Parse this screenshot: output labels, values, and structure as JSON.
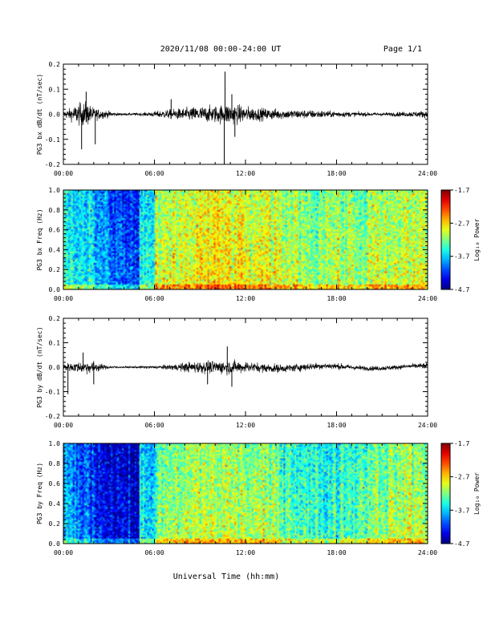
{
  "header": {
    "date_range": "2020/11/08  00:00-24:00 UT",
    "page": "Page 1/1"
  },
  "footer": {
    "xlabel": "Universal Time (hh:mm)"
  },
  "time_ticks": [
    "00:00",
    "06:00",
    "12:00",
    "18:00",
    "24:00"
  ],
  "colorbar": {
    "title": "Log₁₀ Power",
    "ticks": [
      "-1.7",
      "-2.7",
      "-3.7",
      "-4.7"
    ],
    "range": [
      -4.7,
      -1.7
    ]
  },
  "chart_data": [
    {
      "type": "line",
      "ylabel": "PG3 bx dB/dt (nT/sec)",
      "xlim": [
        0,
        24
      ],
      "ylim": [
        -0.2,
        0.2
      ],
      "yticks": [
        "0.2",
        "0.1",
        "0.0",
        "-0.1",
        "-0.2"
      ],
      "envelope": {
        "x": [
          0,
          0.5,
          1,
          1.5,
          2,
          2.5,
          3,
          3.5,
          4,
          4.5,
          5,
          5.5,
          6,
          6.5,
          7,
          7.5,
          8,
          8.5,
          9,
          9.5,
          10,
          10.5,
          11,
          11.5,
          12,
          12.5,
          13,
          13.5,
          14,
          14.5,
          15,
          15.5,
          16,
          16.5,
          17,
          17.5,
          18,
          18.5,
          19,
          19.5,
          20,
          20.5,
          21,
          21.5,
          22,
          22.5,
          23,
          23.5,
          24
        ],
        "amplitude": [
          0.02,
          0.04,
          0.07,
          0.08,
          0.04,
          0.03,
          0.02,
          0.01,
          0.008,
          0.008,
          0.01,
          0.012,
          0.018,
          0.025,
          0.03,
          0.035,
          0.04,
          0.045,
          0.05,
          0.05,
          0.055,
          0.06,
          0.07,
          0.06,
          0.05,
          0.045,
          0.04,
          0.035,
          0.035,
          0.03,
          0.03,
          0.028,
          0.028,
          0.025,
          0.025,
          0.02,
          0.02,
          0.018,
          0.015,
          0.015,
          0.012,
          0.012,
          0.012,
          0.012,
          0.015,
          0.015,
          0.018,
          0.02,
          0.025
        ]
      },
      "spikes": [
        {
          "x": 1.2,
          "y": -0.14
        },
        {
          "x": 1.5,
          "y": 0.09
        },
        {
          "x": 2.1,
          "y": -0.12
        },
        {
          "x": 7.1,
          "y": 0.06
        },
        {
          "x": 10.65,
          "y": 0.17
        },
        {
          "x": 10.6,
          "y": -0.2
        },
        {
          "x": 11.1,
          "y": 0.08
        },
        {
          "x": 11.3,
          "y": -0.09
        },
        {
          "x": 24,
          "y": 0.03
        }
      ]
    },
    {
      "type": "heatmap",
      "ylabel": "PG3 bx Freq (Hz)",
      "xlim": [
        0,
        24
      ],
      "ylim": [
        0.0,
        1.0
      ],
      "yticks": [
        "1.0",
        "0.8",
        "0.6",
        "0.4",
        "0.2",
        "0.0"
      ],
      "colorbar_label": "Log₁₀ Power",
      "mean_log_power_by_hour": [
        -3.5,
        -3.6,
        -3.8,
        -4.0,
        -4.1,
        -3.5,
        -3.0,
        -2.9,
        -2.8,
        -2.75,
        -2.75,
        -2.8,
        -2.85,
        -2.9,
        -2.95,
        -3.0,
        -3.1,
        -3.0,
        -3.05,
        -3.1,
        -3.0,
        -3.0,
        -2.95,
        -2.9
      ]
    },
    {
      "type": "line",
      "ylabel": "PG3 by dB/dt (nT/sec)",
      "xlim": [
        0,
        24
      ],
      "ylim": [
        -0.2,
        0.2
      ],
      "yticks": [
        "0.2",
        "0.1",
        "0.0",
        "-0.1",
        "-0.2"
      ],
      "envelope": {
        "x": [
          0,
          0.5,
          1,
          1.5,
          2,
          2.5,
          3,
          3.5,
          4,
          4.5,
          5,
          5.5,
          6,
          6.5,
          7,
          7.5,
          8,
          8.5,
          9,
          9.5,
          10,
          10.5,
          11,
          11.5,
          12,
          12.5,
          13,
          13.5,
          14,
          14.5,
          15,
          15.5,
          16,
          16.5,
          17,
          17.5,
          18,
          18.5,
          19,
          19.5,
          20,
          20.5,
          21,
          21.5,
          22,
          22.5,
          23,
          23.5,
          24
        ],
        "amplitude": [
          0.025,
          0.03,
          0.035,
          0.04,
          0.04,
          0.02,
          0.01,
          0.006,
          0.006,
          0.006,
          0.008,
          0.01,
          0.01,
          0.012,
          0.018,
          0.022,
          0.03,
          0.035,
          0.04,
          0.04,
          0.04,
          0.045,
          0.045,
          0.04,
          0.035,
          0.03,
          0.03,
          0.028,
          0.028,
          0.025,
          0.025,
          0.025,
          0.025,
          0.022,
          0.02,
          0.02,
          0.02,
          0.018,
          0.016,
          0.016,
          0.015,
          0.015,
          0.015,
          0.015,
          0.015,
          0.015,
          0.016,
          0.018,
          0.02
        ]
      },
      "spikes": [
        {
          "x": 1.3,
          "y": 0.06
        },
        {
          "x": 0.3,
          "y": -0.11
        },
        {
          "x": 2.0,
          "y": -0.07
        },
        {
          "x": 10.8,
          "y": 0.085
        },
        {
          "x": 11.1,
          "y": -0.08
        },
        {
          "x": 9.5,
          "y": -0.07
        }
      ]
    },
    {
      "type": "heatmap",
      "ylabel": "PG3 by Freq (Hz)",
      "xlim": [
        0,
        24
      ],
      "ylim": [
        0.0,
        1.0
      ],
      "yticks": [
        "1.0",
        "0.8",
        "0.6",
        "0.4",
        "0.2",
        "0.0"
      ],
      "colorbar_label": "Log₁₀ Power",
      "mean_log_power_by_hour": [
        -3.8,
        -4.0,
        -4.2,
        -4.3,
        -4.4,
        -3.6,
        -3.2,
        -3.1,
        -3.0,
        -2.95,
        -3.0,
        -3.0,
        -3.05,
        -3.1,
        -3.2,
        -3.3,
        -3.4,
        -3.4,
        -3.3,
        -3.25,
        -3.1,
        -3.05,
        -3.0,
        -3.0
      ]
    }
  ]
}
